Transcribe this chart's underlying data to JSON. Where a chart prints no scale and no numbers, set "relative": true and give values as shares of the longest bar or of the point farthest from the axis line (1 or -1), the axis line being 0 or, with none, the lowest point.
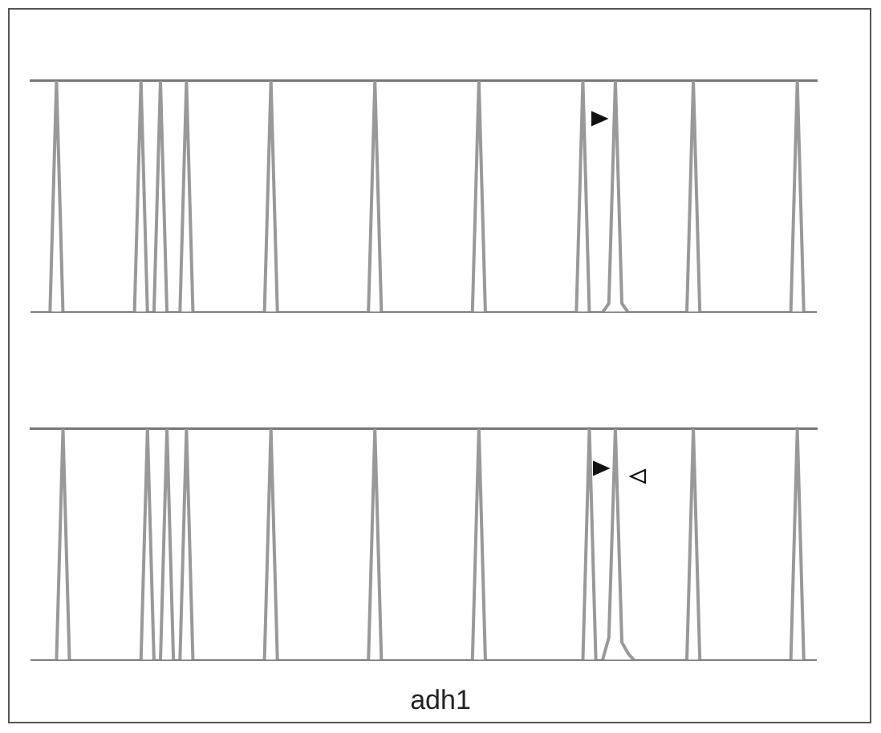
{
  "chart_data": [
    {
      "type": "line",
      "relative": true,
      "marker": "none",
      "categories": [
        null,
        null,
        null,
        null,
        null,
        null,
        null,
        null,
        null,
        null,
        null,
        null,
        null,
        null,
        null,
        null,
        null,
        null,
        null,
        null,
        null,
        null,
        null,
        null,
        null,
        null,
        null,
        null,
        null,
        null,
        null,
        null,
        null,
        null,
        null,
        null,
        null,
        null,
        null,
        null,
        null,
        null,
        null,
        null,
        null,
        null,
        null,
        null,
        null,
        null,
        null,
        null,
        null,
        null,
        null,
        null,
        null,
        null,
        null,
        null,
        null,
        null,
        null,
        null,
        null,
        null,
        null,
        null,
        null,
        null,
        null,
        null,
        null,
        null,
        null,
        null,
        null,
        null,
        null,
        null,
        null,
        null,
        null,
        null,
        null,
        null,
        null,
        null,
        null,
        null,
        null,
        null,
        null,
        null,
        null,
        null,
        null,
        null,
        null,
        null,
        null,
        null,
        null,
        null,
        null,
        null,
        null,
        null,
        null,
        null,
        null,
        null,
        null,
        null,
        null,
        null,
        null,
        null,
        null,
        null,
        null,
        null
      ],
      "series": [
        {
          "color": "#999999",
          "values": [
            0,
            0,
            0,
            0,
            1,
            0,
            0,
            0,
            0,
            0,
            0,
            0,
            0,
            0,
            0,
            0,
            0,
            1,
            0,
            0,
            1,
            0,
            0,
            0,
            1,
            0,
            0,
            0,
            0,
            0,
            0,
            0,
            0,
            0,
            0,
            0,
            0,
            1,
            0,
            0,
            0,
            0,
            0,
            0,
            0,
            0,
            0,
            0,
            0,
            0,
            0,
            0,
            0,
            1,
            0,
            0,
            0,
            0,
            0,
            0,
            0,
            0,
            0,
            0,
            0,
            0,
            0,
            0,
            0,
            1,
            0,
            0,
            0,
            0,
            0,
            0,
            0,
            0,
            0,
            0,
            0,
            0,
            0,
            0,
            0,
            1,
            0,
            0,
            0,
            0.04,
            1,
            0.04,
            0,
            0,
            0,
            0,
            0,
            0,
            0,
            0,
            0,
            0,
            1,
            0,
            0,
            0,
            0,
            0,
            0,
            0,
            0,
            0,
            0,
            0,
            0,
            0,
            0,
            0,
            1,
            0,
            0,
            0
          ]
        }
      ]
    },
    {
      "type": "line",
      "relative": true,
      "marker": "none",
      "xlabel": "adh1",
      "categories": [
        null,
        null,
        null,
        null,
        null,
        null,
        null,
        null,
        null,
        null,
        null,
        null,
        null,
        null,
        null,
        null,
        null,
        null,
        null,
        null,
        null,
        null,
        null,
        null,
        null,
        null,
        null,
        null,
        null,
        null,
        null,
        null,
        null,
        null,
        null,
        null,
        null,
        null,
        null,
        null,
        null,
        null,
        null,
        null,
        null,
        null,
        null,
        null,
        null,
        null,
        null,
        null,
        null,
        null,
        null,
        null,
        null,
        null,
        null,
        null,
        null,
        null,
        null,
        null,
        null,
        null,
        null,
        null,
        null,
        null,
        null,
        null,
        null,
        null,
        null,
        null,
        null,
        null,
        null,
        null,
        null,
        null,
        null,
        null,
        null,
        null,
        null,
        null,
        null,
        null,
        null,
        null,
        null,
        null,
        null,
        null,
        null,
        null,
        null,
        null,
        null,
        null,
        null,
        null,
        null,
        null,
        null,
        null,
        null,
        null,
        null,
        null,
        null,
        null,
        null,
        null,
        null,
        null,
        null,
        null,
        null,
        null
      ],
      "series": [
        {
          "color": "#999999",
          "values": [
            0,
            0,
            0,
            0,
            0,
            1,
            0,
            0,
            0,
            0,
            0,
            0,
            0,
            0,
            0,
            0,
            0,
            0,
            1,
            0,
            0,
            1,
            0,
            0,
            1,
            0,
            0,
            0,
            0,
            0,
            0,
            0,
            0,
            0,
            0,
            0,
            0,
            1,
            0,
            0,
            0,
            0,
            0,
            0,
            0,
            0,
            0,
            0,
            0,
            0,
            0,
            0,
            0,
            1,
            0,
            0,
            0,
            0,
            0,
            0,
            0,
            0,
            0,
            0,
            0,
            0,
            0,
            0,
            0,
            1,
            0,
            0,
            0,
            0,
            0,
            0,
            0,
            0,
            0,
            0,
            0,
            0,
            0,
            0,
            0,
            0,
            1,
            0,
            0,
            0.1,
            1,
            0.08,
            0.03,
            0,
            0,
            0,
            0,
            0,
            0,
            0,
            0,
            0,
            1,
            0,
            0,
            0,
            0,
            0,
            0,
            0,
            0,
            0,
            0,
            0,
            0,
            0,
            0,
            0,
            1,
            0,
            0,
            0
          ]
        }
      ]
    }
  ]
}
